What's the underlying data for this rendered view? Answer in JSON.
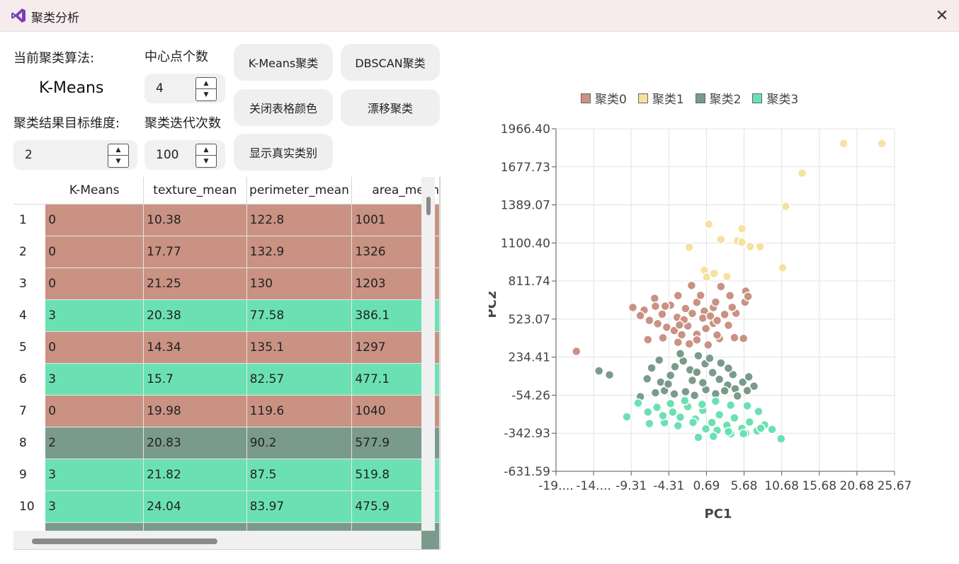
{
  "window": {
    "title": "聚类分析",
    "close_icon": "✕"
  },
  "controls": {
    "algo_label": "当前聚类算法:",
    "algo_value": "K-Means",
    "centers_label": "中心点个数",
    "centers_value": "4",
    "target_dim_label": "聚类结果目标维度:",
    "target_dim_value": "2",
    "iterations_label": "聚类迭代次数",
    "iterations_value": "100"
  },
  "buttons": {
    "kmeans": "K-Means聚类",
    "dbscan": "DBSCAN聚类",
    "close_colors": "关闭表格颜色",
    "drift": "漂移聚类",
    "show_true": "显示真实类别"
  },
  "colors": {
    "c0": "#c99283",
    "c1": "#f6e1a1",
    "c2": "#7a9b8b",
    "c3": "#6be1b3"
  },
  "table": {
    "headers": [
      "K-Means",
      "texture_mean",
      "perimeter_mean",
      "area_mean"
    ],
    "rows": [
      {
        "num": "1",
        "cluster": "0",
        "cells": [
          "0",
          "10.38",
          "122.8",
          "1001"
        ]
      },
      {
        "num": "2",
        "cluster": "0",
        "cells": [
          "0",
          "17.77",
          "132.9",
          "1326"
        ]
      },
      {
        "num": "3",
        "cluster": "0",
        "cells": [
          "0",
          "21.25",
          "130",
          "1203"
        ]
      },
      {
        "num": "4",
        "cluster": "3",
        "cells": [
          "3",
          "20.38",
          "77.58",
          "386.1"
        ]
      },
      {
        "num": "5",
        "cluster": "0",
        "cells": [
          "0",
          "14.34",
          "135.1",
          "1297"
        ]
      },
      {
        "num": "6",
        "cluster": "3",
        "cells": [
          "3",
          "15.7",
          "82.57",
          "477.1"
        ]
      },
      {
        "num": "7",
        "cluster": "0",
        "cells": [
          "0",
          "19.98",
          "119.6",
          "1040"
        ]
      },
      {
        "num": "8",
        "cluster": "2",
        "cells": [
          "2",
          "20.83",
          "90.2",
          "577.9"
        ]
      },
      {
        "num": "9",
        "cluster": "3",
        "cells": [
          "3",
          "21.82",
          "87.5",
          "519.8"
        ]
      },
      {
        "num": "10",
        "cluster": "3",
        "cells": [
          "3",
          "24.04",
          "83.97",
          "475.9"
        ]
      },
      {
        "num": "",
        "cluster": "2",
        "cells": [
          "",
          "",
          "",
          ""
        ]
      }
    ]
  },
  "chart_data": {
    "type": "scatter",
    "xlabel": "PC1",
    "ylabel": "PC2",
    "xlim": [
      -19.31,
      25.67
    ],
    "ylim": [
      -631.59,
      1966.4
    ],
    "x_tick_labels": [
      "-19....",
      "-14....",
      "-9.31",
      "-4.31",
      "0.69",
      "5.68",
      "10.68",
      "15.68",
      "20.68",
      "25.67"
    ],
    "y_tick_labels": [
      "-631.59",
      "-342.93",
      "-54.26",
      "234.41",
      "523.07",
      "811.74",
      "1100.40",
      "1389.07",
      "1677.73",
      "1966.40"
    ],
    "legend_position": "top",
    "grid": true,
    "series": [
      {
        "name": "聚类0",
        "color": "#c99283",
        "points": [
          [
            -16.6,
            278
          ],
          [
            -9.1,
            611
          ],
          [
            -7.6,
            591
          ],
          [
            -6.2,
            680
          ],
          [
            -5.2,
            560
          ],
          [
            -4.1,
            628
          ],
          [
            -3.1,
            701
          ],
          [
            -2.1,
            603
          ],
          [
            -1.3,
            778
          ],
          [
            -0.6,
            650
          ],
          [
            0.4,
            583
          ],
          [
            1.6,
            611
          ],
          [
            2.6,
            770
          ],
          [
            3.8,
            701
          ],
          [
            4.6,
            567
          ],
          [
            5.8,
            652
          ],
          [
            -8.1,
            549
          ],
          [
            -6.9,
            513
          ],
          [
            -5.8,
            488
          ],
          [
            -4.6,
            461
          ],
          [
            -3.6,
            436
          ],
          [
            -2.6,
            404
          ],
          [
            -1.8,
            471
          ],
          [
            -0.6,
            408
          ],
          [
            0.6,
            451
          ],
          [
            1.6,
            491
          ],
          [
            2.4,
            375
          ],
          [
            3.6,
            476
          ],
          [
            -7.1,
            367
          ],
          [
            -5.1,
            381
          ],
          [
            -3.1,
            347
          ],
          [
            -1.6,
            335
          ],
          [
            -0.6,
            365
          ],
          [
            0.9,
            327
          ],
          [
            2.1,
            402
          ],
          [
            4.4,
            382
          ],
          [
            5.6,
            376
          ],
          [
            -4.8,
            621
          ],
          [
            -3.2,
            536
          ],
          [
            -2.3,
            518
          ],
          [
            -1.2,
            566
          ],
          [
            0.2,
            530
          ],
          [
            1.2,
            546
          ],
          [
            2.1,
            512
          ],
          [
            3.1,
            558
          ],
          [
            4.1,
            612
          ],
          [
            5.9,
            735
          ],
          [
            6.2,
            695
          ],
          [
            -6.1,
            620
          ],
          [
            -2.9,
            478
          ],
          [
            -0.1,
            703
          ],
          [
            1.9,
            652
          ]
        ]
      },
      {
        "name": "聚类1",
        "color": "#f6e1a1",
        "points": [
          [
            0.4,
            894
          ],
          [
            0.7,
            841
          ],
          [
            1.0,
            1242
          ],
          [
            1.7,
            869
          ],
          [
            3.4,
            846
          ],
          [
            -1.6,
            1068
          ],
          [
            2.6,
            1127
          ],
          [
            4.8,
            1117
          ],
          [
            5.4,
            1209
          ],
          [
            5.4,
            1106
          ],
          [
            6.5,
            1073
          ],
          [
            7.8,
            1073
          ],
          [
            10.8,
            912
          ],
          [
            11.2,
            1378
          ],
          [
            13.4,
            1630
          ],
          [
            18.9,
            1855
          ],
          [
            24.0,
            1855
          ]
        ]
      },
      {
        "name": "聚类2",
        "color": "#7a9b8b",
        "points": [
          [
            -13.6,
            130
          ],
          [
            -12.2,
            100
          ],
          [
            -8.1,
            -66
          ],
          [
            -7.2,
            70
          ],
          [
            -6.6,
            152
          ],
          [
            -5.4,
            45
          ],
          [
            -4.9,
            -20
          ],
          [
            -4.1,
            96
          ],
          [
            -3.5,
            162
          ],
          [
            -2.4,
            205
          ],
          [
            -1.5,
            138
          ],
          [
            -0.4,
            245
          ],
          [
            0.5,
            184
          ],
          [
            1.5,
            117
          ],
          [
            2.4,
            66
          ],
          [
            3.5,
            22
          ],
          [
            4.5,
            -6
          ],
          [
            5.5,
            45
          ],
          [
            6.3,
            85
          ],
          [
            7.0,
            14
          ],
          [
            -6.1,
            -36
          ],
          [
            -3.6,
            -45
          ],
          [
            -2.1,
            -28
          ],
          [
            -0.9,
            -56
          ],
          [
            0.6,
            -12
          ],
          [
            1.9,
            -44
          ],
          [
            3.1,
            -21
          ],
          [
            4.8,
            -60
          ],
          [
            -5.6,
            212
          ],
          [
            -2.8,
            260
          ],
          [
            -1.2,
            58
          ],
          [
            0.2,
            40
          ],
          [
            2.6,
            190
          ],
          [
            4.2,
            102
          ],
          [
            -4.4,
            30
          ],
          [
            -0.6,
            120
          ],
          [
            1.1,
            226
          ],
          [
            3.6,
            150
          ],
          [
            6.1,
            -20
          ]
        ]
      },
      {
        "name": "聚类3",
        "color": "#6be1b3",
        "points": [
          [
            -9.9,
            -218
          ],
          [
            -8.4,
            -114
          ],
          [
            -7.1,
            -182
          ],
          [
            -5.9,
            -146
          ],
          [
            -4.9,
            -263
          ],
          [
            -3.8,
            -183
          ],
          [
            -2.8,
            -221
          ],
          [
            -1.8,
            -141
          ],
          [
            -0.8,
            -236
          ],
          [
            0.2,
            -169
          ],
          [
            1.4,
            -262
          ],
          [
            2.4,
            -203
          ],
          [
            3.4,
            -283
          ],
          [
            4.4,
            -227
          ],
          [
            5.4,
            -306
          ],
          [
            6.4,
            -258
          ],
          [
            7.4,
            -325
          ],
          [
            8.4,
            -280
          ],
          [
            9.4,
            -314
          ],
          [
            10.6,
            -385
          ],
          [
            -6.9,
            -270
          ],
          [
            -5.1,
            -210
          ],
          [
            -3.1,
            -286
          ],
          [
            -1.1,
            -261
          ],
          [
            0.6,
            -310
          ],
          [
            2.1,
            -321
          ],
          [
            3.9,
            -347
          ],
          [
            5.9,
            -343
          ],
          [
            7.9,
            -305
          ],
          [
            -4.1,
            -118
          ],
          [
            -2.2,
            -96
          ],
          [
            0.1,
            -124
          ],
          [
            1.9,
            -100
          ],
          [
            3.9,
            -130
          ],
          [
            6.1,
            -135
          ],
          [
            7.6,
            -178
          ],
          [
            -0.4,
            -374
          ],
          [
            1.6,
            -366
          ],
          [
            3.6,
            -331
          ],
          [
            5.6,
            -346
          ]
        ]
      }
    ]
  }
}
